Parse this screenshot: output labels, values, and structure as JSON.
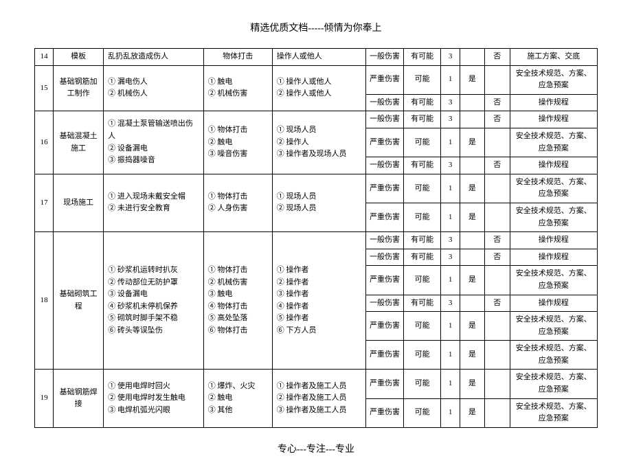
{
  "header_text": "精选优质文档-----倾情为你奉上",
  "footer_text": "专心---专注---专业",
  "sev_general": "一般伤害",
  "sev_serious": "严重伤害",
  "prob_maybe": "有可能",
  "prob_possible": "可能",
  "lvl1": "1",
  "lvl3": "3",
  "yes": "是",
  "no": "否",
  "measure_rules": "操作规程",
  "measure_safety": "安全技术规范、方案、应急预案",
  "measure_plan": "施工方案、交底",
  "row14": {
    "idx": "14",
    "proc": "模板",
    "cause": "乱扔乱放造成伤人",
    "type": "物体打击",
    "target": "操作人或他人"
  },
  "row15": {
    "idx": "15",
    "proc": "基础钢筋加工制作",
    "cause": "① 漏电伤人\n② 机械伤人",
    "type": "① 触电\n② 机械伤害",
    "target": "① 操作人或他人\n② 操作人或他人"
  },
  "row16": {
    "idx": "16",
    "proc": "基础混凝土施工",
    "cause": "① 混凝土泵管输送喷出伤人\n② 设备漏电\n③ 振捣器噪音",
    "type": "① 物体打击\n② 触电\n③ 噪音伤害",
    "target": "① 现场人员\n② 操作人\n③ 操作者及现场人员"
  },
  "row17": {
    "idx": "17",
    "proc": "现场施工",
    "cause": "① 进入现场未戴安全帽\n② 未进行安全教育",
    "type": "① 物体打击\n② 人身伤害",
    "target": "① 现场人员\n② 现场人员"
  },
  "row18": {
    "idx": "18",
    "proc": "基础砌筑工程",
    "cause": "① 砂浆机运转时扒灰\n② 传动部位无防护罩\n③ 设备漏电\n④ 砂浆机未停机保养\n⑤ 砌筑时脚手架不稳\n⑥ 砖头等误坠伤",
    "type": "① 物体打击\n② 机械伤害\n③ 触电\n④ 物体打击\n⑤ 高处坠落\n⑥ 物体打击",
    "target": "① 操作者\n② 操作者\n③ 操作者\n④ 操作者\n⑤ 操作者\n⑥ 下方人员"
  },
  "row19": {
    "idx": "19",
    "proc": "基础钢筋焊接",
    "cause": "① 使用电焊时回火\n② 使用电焊时发生触电\n③ 电焊机弧光闪眼",
    "type": "① 爆炸、火灾\n② 触电\n③ 其他",
    "target": "① 操作者及施工人员\n② 操作者及施工人员\n③ 操作者及施工人员"
  }
}
